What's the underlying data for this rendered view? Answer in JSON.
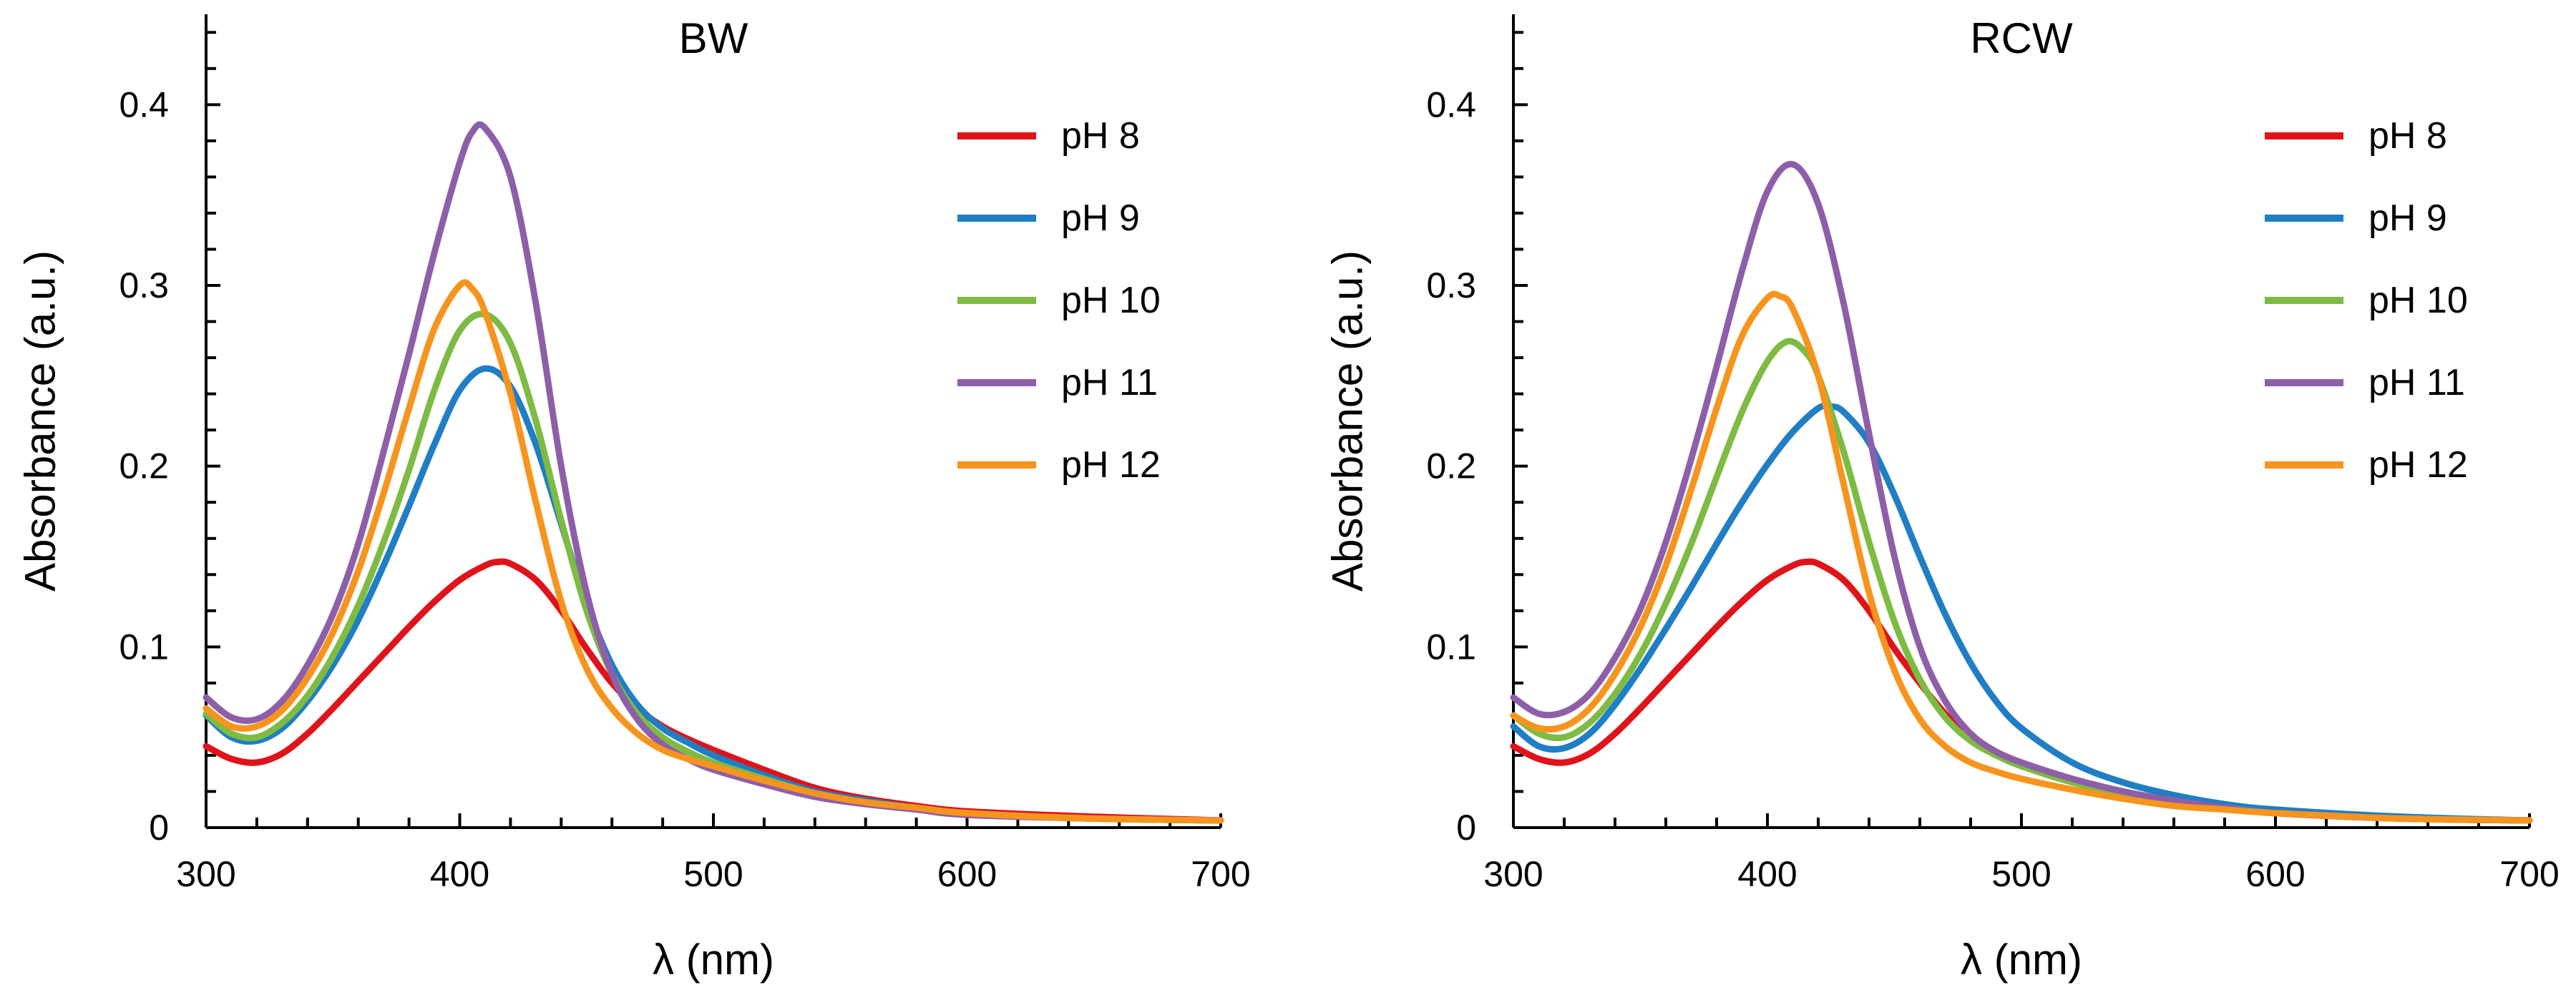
{
  "chart_data": [
    {
      "type": "line",
      "title": "BW",
      "xlabel": "λ (nm)",
      "ylabel": "Absorbance (a.u.)",
      "xlim": [
        300,
        700
      ],
      "ylim": [
        0,
        0.45
      ],
      "xticks": [
        300,
        400,
        500,
        600,
        700
      ],
      "xtick_labels": [
        "300",
        "400",
        "500",
        "600",
        "700"
      ],
      "yticks": [
        0,
        0.1,
        0.2,
        0.3,
        0.4
      ],
      "ytick_labels": [
        "0",
        "0.1",
        "0.2",
        "0.3",
        "0.4"
      ],
      "legend_position": "top-right",
      "series": [
        {
          "name": "pH 8",
          "color": "#E0131A",
          "x": [
            300,
            310,
            320,
            330,
            340,
            350,
            360,
            370,
            380,
            390,
            400,
            410,
            415,
            420,
            430,
            440,
            450,
            460,
            470,
            480,
            490,
            500,
            520,
            540,
            560,
            580,
            600,
            650,
            700
          ],
          "y": [
            0.045,
            0.038,
            0.036,
            0.041,
            0.052,
            0.066,
            0.081,
            0.096,
            0.111,
            0.125,
            0.137,
            0.145,
            0.147,
            0.146,
            0.137,
            0.12,
            0.099,
            0.08,
            0.066,
            0.056,
            0.049,
            0.043,
            0.032,
            0.022,
            0.016,
            0.012,
            0.009,
            0.006,
            0.004
          ]
        },
        {
          "name": "pH 9",
          "color": "#1F7EC4",
          "x": [
            300,
            310,
            320,
            330,
            340,
            350,
            360,
            370,
            380,
            390,
            400,
            410,
            420,
            430,
            440,
            450,
            460,
            470,
            480,
            490,
            500,
            520,
            540,
            560,
            580,
            600,
            650,
            700
          ],
          "y": [
            0.062,
            0.05,
            0.048,
            0.055,
            0.07,
            0.09,
            0.115,
            0.145,
            0.178,
            0.212,
            0.242,
            0.254,
            0.244,
            0.212,
            0.168,
            0.124,
            0.09,
            0.068,
            0.055,
            0.047,
            0.04,
            0.029,
            0.02,
            0.015,
            0.011,
            0.008,
            0.005,
            0.004
          ]
        },
        {
          "name": "pH 10",
          "color": "#7DBB42",
          "x": [
            300,
            310,
            320,
            330,
            340,
            350,
            360,
            370,
            380,
            390,
            400,
            410,
            420,
            430,
            440,
            450,
            460,
            470,
            480,
            490,
            500,
            520,
            540,
            560,
            580,
            600,
            650,
            700
          ],
          "y": [
            0.063,
            0.052,
            0.05,
            0.058,
            0.073,
            0.095,
            0.123,
            0.158,
            0.198,
            0.242,
            0.275,
            0.284,
            0.268,
            0.225,
            0.17,
            0.12,
            0.085,
            0.063,
            0.05,
            0.042,
            0.036,
            0.027,
            0.019,
            0.014,
            0.011,
            0.008,
            0.005,
            0.004
          ]
        },
        {
          "name": "pH 11",
          "color": "#8E5FA9",
          "x": [
            300,
            310,
            320,
            330,
            340,
            350,
            360,
            370,
            380,
            390,
            400,
            405,
            410,
            420,
            430,
            440,
            450,
            460,
            470,
            480,
            490,
            500,
            520,
            540,
            560,
            580,
            600,
            650,
            700
          ],
          "y": [
            0.072,
            0.061,
            0.06,
            0.07,
            0.09,
            0.118,
            0.157,
            0.208,
            0.262,
            0.318,
            0.368,
            0.385,
            0.387,
            0.36,
            0.29,
            0.2,
            0.13,
            0.085,
            0.06,
            0.046,
            0.038,
            0.032,
            0.024,
            0.017,
            0.013,
            0.01,
            0.007,
            0.005,
            0.004
          ]
        },
        {
          "name": "pH 12",
          "color": "#F7941D",
          "x": [
            300,
            310,
            320,
            330,
            340,
            350,
            360,
            370,
            380,
            390,
            400,
            405,
            410,
            420,
            430,
            440,
            450,
            460,
            470,
            480,
            490,
            500,
            520,
            540,
            560,
            580,
            600,
            650,
            700
          ],
          "y": [
            0.066,
            0.056,
            0.056,
            0.065,
            0.083,
            0.108,
            0.142,
            0.185,
            0.232,
            0.276,
            0.3,
            0.298,
            0.285,
            0.24,
            0.18,
            0.125,
            0.088,
            0.066,
            0.052,
            0.043,
            0.038,
            0.034,
            0.026,
            0.019,
            0.014,
            0.011,
            0.008,
            0.005,
            0.004
          ]
        }
      ]
    },
    {
      "type": "line",
      "title": "RCW",
      "xlabel": "λ (nm)",
      "ylabel": "Absorbance (a.u.)",
      "xlim": [
        300,
        700
      ],
      "ylim": [
        0,
        0.45
      ],
      "xticks": [
        300,
        400,
        500,
        600,
        700
      ],
      "xtick_labels": [
        "300",
        "400",
        "500",
        "600",
        "700"
      ],
      "yticks": [
        0,
        0.1,
        0.2,
        0.3,
        0.4
      ],
      "ytick_labels": [
        "0",
        "0.1",
        "0.2",
        "0.3",
        "0.4"
      ],
      "legend_position": "top-right",
      "series": [
        {
          "name": "pH 8",
          "color": "#E0131A",
          "x": [
            300,
            310,
            320,
            330,
            340,
            350,
            360,
            370,
            380,
            390,
            400,
            410,
            415,
            420,
            430,
            440,
            450,
            460,
            470,
            480,
            490,
            500,
            520,
            540,
            560,
            580,
            600,
            650,
            700
          ],
          "y": [
            0.045,
            0.038,
            0.036,
            0.041,
            0.052,
            0.066,
            0.081,
            0.096,
            0.111,
            0.125,
            0.137,
            0.145,
            0.147,
            0.146,
            0.137,
            0.12,
            0.099,
            0.08,
            0.063,
            0.05,
            0.042,
            0.036,
            0.027,
            0.02,
            0.015,
            0.011,
            0.008,
            0.005,
            0.004
          ]
        },
        {
          "name": "pH 9",
          "color": "#1F7EC4",
          "x": [
            300,
            310,
            320,
            330,
            340,
            350,
            360,
            370,
            380,
            390,
            400,
            410,
            420,
            425,
            430,
            440,
            450,
            460,
            470,
            480,
            490,
            500,
            520,
            540,
            560,
            580,
            600,
            650,
            700
          ],
          "y": [
            0.056,
            0.045,
            0.044,
            0.052,
            0.068,
            0.088,
            0.11,
            0.133,
            0.157,
            0.18,
            0.201,
            0.219,
            0.232,
            0.233,
            0.23,
            0.213,
            0.184,
            0.15,
            0.118,
            0.091,
            0.07,
            0.055,
            0.036,
            0.025,
            0.018,
            0.013,
            0.01,
            0.006,
            0.004
          ]
        },
        {
          "name": "pH 10",
          "color": "#7DBB42",
          "x": [
            300,
            310,
            320,
            330,
            340,
            350,
            360,
            370,
            380,
            390,
            400,
            408,
            415,
            420,
            430,
            440,
            450,
            460,
            470,
            480,
            490,
            500,
            520,
            540,
            560,
            580,
            600,
            650,
            700
          ],
          "y": [
            0.062,
            0.052,
            0.05,
            0.058,
            0.074,
            0.096,
            0.124,
            0.157,
            0.194,
            0.23,
            0.258,
            0.269,
            0.263,
            0.25,
            0.208,
            0.158,
            0.114,
            0.082,
            0.061,
            0.048,
            0.04,
            0.034,
            0.025,
            0.018,
            0.014,
            0.011,
            0.008,
            0.005,
            0.004
          ]
        },
        {
          "name": "pH 11",
          "color": "#8E5FA9",
          "x": [
            300,
            310,
            320,
            330,
            340,
            350,
            360,
            370,
            380,
            390,
            400,
            410,
            420,
            430,
            440,
            450,
            460,
            470,
            480,
            490,
            500,
            520,
            540,
            560,
            580,
            600,
            650,
            700
          ],
          "y": [
            0.072,
            0.063,
            0.064,
            0.074,
            0.094,
            0.121,
            0.158,
            0.204,
            0.255,
            0.308,
            0.352,
            0.367,
            0.345,
            0.29,
            0.218,
            0.15,
            0.1,
            0.07,
            0.052,
            0.042,
            0.036,
            0.027,
            0.02,
            0.015,
            0.011,
            0.008,
            0.005,
            0.004
          ]
        },
        {
          "name": "pH 12",
          "color": "#F7941D",
          "x": [
            300,
            310,
            320,
            330,
            340,
            350,
            360,
            370,
            380,
            390,
            400,
            405,
            410,
            420,
            430,
            440,
            450,
            460,
            470,
            480,
            490,
            500,
            520,
            540,
            560,
            580,
            600,
            650,
            700
          ],
          "y": [
            0.062,
            0.055,
            0.056,
            0.066,
            0.085,
            0.111,
            0.145,
            0.187,
            0.232,
            0.272,
            0.293,
            0.294,
            0.287,
            0.25,
            0.19,
            0.13,
            0.087,
            0.06,
            0.045,
            0.036,
            0.031,
            0.027,
            0.021,
            0.016,
            0.012,
            0.01,
            0.008,
            0.005,
            0.004
          ]
        }
      ]
    }
  ]
}
